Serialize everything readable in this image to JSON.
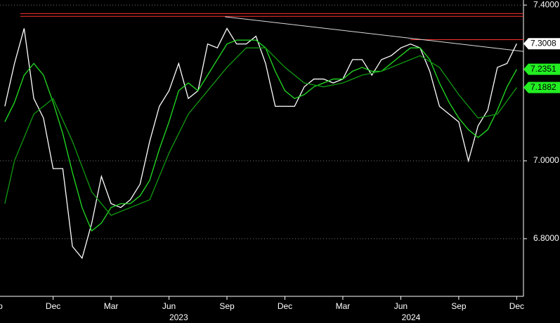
{
  "chart_data": {
    "type": "line",
    "xlim": [
      0.25,
      27.35
    ],
    "ylim": [
      6.652,
      7.413
    ],
    "yticks": [
      {
        "value": 6.8,
        "label": "6.8000"
      },
      {
        "value": 7.0,
        "label": "7.0000"
      },
      {
        "value": 7.4,
        "label": "7.4000"
      }
    ],
    "xticks": [
      {
        "value": 0,
        "label": "Sep"
      },
      {
        "value": 3,
        "label": "Dec"
      },
      {
        "value": 6,
        "label": "Mar"
      },
      {
        "value": 9,
        "label": "Jun"
      },
      {
        "value": 12,
        "label": "Sep"
      },
      {
        "value": 15,
        "label": "Dec"
      },
      {
        "value": 18,
        "label": "Mar"
      },
      {
        "value": 21,
        "label": "Jun"
      },
      {
        "value": 24,
        "label": "Sep"
      },
      {
        "value": 27,
        "label": "Dec"
      }
    ],
    "year_labels": [
      {
        "value": 9.5,
        "label": "2023"
      },
      {
        "value": 21.53,
        "label": "2024"
      }
    ],
    "grid": true,
    "series": [
      {
        "color": "#ffffff",
        "end_label": "7.3008",
        "x": [
          0.5,
          1,
          1.5,
          2,
          2.5,
          3,
          3.5,
          4,
          4.5,
          5,
          5.5,
          6,
          6.5,
          7,
          7.5,
          8,
          8.5,
          9,
          9.5,
          10,
          10.5,
          11,
          11.5,
          12,
          12.5,
          13,
          13.5,
          14,
          14.5,
          15,
          15.5,
          16,
          16.5,
          17,
          17.5,
          18,
          18.5,
          19,
          19.5,
          20,
          20.5,
          21,
          21.5,
          22,
          22.5,
          23,
          23.5,
          24,
          24.5,
          25,
          25.5,
          26,
          26.5,
          27
        ],
        "values": [
          7.14,
          7.25,
          7.34,
          7.16,
          7.11,
          6.98,
          6.98,
          6.78,
          6.75,
          6.84,
          6.96,
          6.89,
          6.88,
          6.9,
          6.94,
          7.05,
          7.14,
          7.18,
          7.25,
          7.16,
          7.18,
          7.3,
          7.29,
          7.34,
          7.3,
          7.3,
          7.32,
          7.25,
          7.14,
          7.14,
          7.14,
          7.19,
          7.21,
          7.21,
          7.2,
          7.21,
          7.26,
          7.26,
          7.22,
          7.26,
          7.27,
          7.29,
          7.3,
          7.29,
          7.23,
          7.14,
          7.12,
          7.1,
          7.0,
          7.09,
          7.13,
          7.24,
          7.25,
          7.3008
        ]
      },
      {
        "color": "#22dd22",
        "end_label": "7.2351",
        "x": [
          0.5,
          1,
          1.5,
          2,
          2.5,
          3,
          3.5,
          4,
          4.5,
          5,
          5.5,
          6,
          6.5,
          7,
          7.5,
          8,
          8.5,
          9,
          9.5,
          10,
          10.5,
          11,
          11.5,
          12,
          12.5,
          13,
          13.5,
          14,
          14.5,
          15,
          15.5,
          16,
          16.5,
          17,
          17.5,
          18,
          18.5,
          19,
          19.5,
          20,
          20.5,
          21,
          21.5,
          22,
          22.5,
          23,
          23.5,
          24,
          24.5,
          25,
          25.5,
          26,
          26.5,
          27
        ],
        "values": [
          7.1,
          7.15,
          7.22,
          7.25,
          7.22,
          7.15,
          7.07,
          6.97,
          6.88,
          6.82,
          6.84,
          6.88,
          6.89,
          6.89,
          6.91,
          6.95,
          7.03,
          7.1,
          7.18,
          7.2,
          7.18,
          7.22,
          7.26,
          7.3,
          7.31,
          7.31,
          7.31,
          7.29,
          7.23,
          7.18,
          7.16,
          7.17,
          7.19,
          7.2,
          7.21,
          7.21,
          7.23,
          7.24,
          7.23,
          7.23,
          7.25,
          7.27,
          7.29,
          7.29,
          7.26,
          7.2,
          7.15,
          7.11,
          7.08,
          7.06,
          7.08,
          7.13,
          7.19,
          7.2351
        ]
      },
      {
        "color": "#119911",
        "end_label": "7.1882",
        "x": [
          0.5,
          1,
          2,
          3,
          4,
          5,
          6,
          7,
          8,
          9,
          10,
          11,
          12,
          13,
          14,
          15,
          16,
          17,
          18,
          19,
          20,
          21,
          22,
          23,
          24,
          25,
          26,
          27
        ],
        "values": [
          6.89,
          7.0,
          7.12,
          7.16,
          7.05,
          6.92,
          6.86,
          6.88,
          6.9,
          7.02,
          7.12,
          7.18,
          7.24,
          7.29,
          7.29,
          7.24,
          7.2,
          7.19,
          7.2,
          7.22,
          7.23,
          7.25,
          7.27,
          7.24,
          7.17,
          7.11,
          7.12,
          7.1882
        ]
      }
    ],
    "reference_lines": [
      {
        "color": "#ff3333",
        "x": [
          1.3,
          27.35
        ],
        "y": [
          7.378,
          7.378
        ]
      },
      {
        "color": "#ff3333",
        "x": [
          1.3,
          27.35
        ],
        "y": [
          7.371,
          7.371
        ]
      },
      {
        "color": "#ff3333",
        "x": [
          21.5,
          27.35
        ],
        "y": [
          7.311,
          7.311
        ]
      },
      {
        "color": "#dddddd",
        "x": [
          11.9,
          27.35
        ],
        "y": [
          7.37,
          7.281
        ]
      }
    ]
  }
}
